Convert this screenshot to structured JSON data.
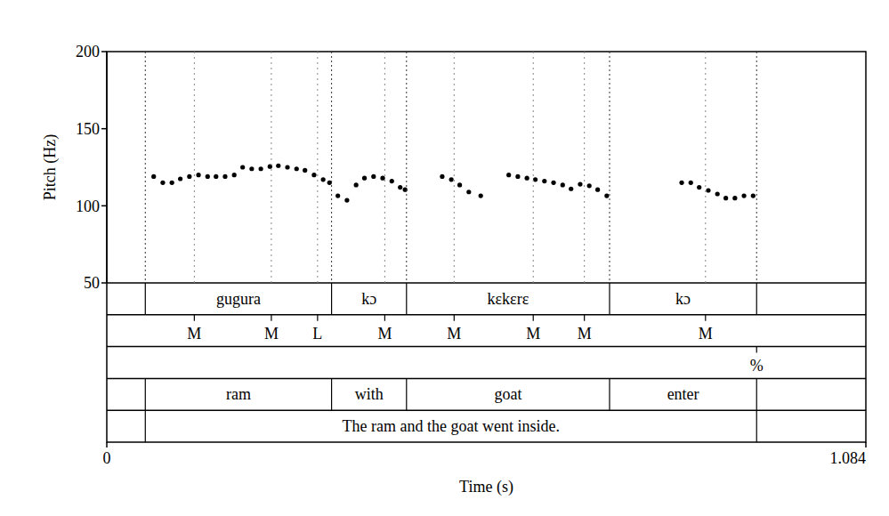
{
  "chart_data": {
    "type": "scatter",
    "x_label": "Time (s)",
    "y_label": "Pitch (Hz)",
    "xlim": [
      0,
      1.084
    ],
    "xticks": [
      0,
      1.084
    ],
    "ylim": [
      50,
      200
    ],
    "yticks": [
      50,
      100,
      150,
      200
    ],
    "color": "#000000",
    "marker": "circle",
    "x": [
      0.067,
      0.08,
      0.093,
      0.105,
      0.118,
      0.131,
      0.144,
      0.156,
      0.169,
      0.182,
      0.194,
      0.207,
      0.22,
      0.233,
      0.245,
      0.258,
      0.271,
      0.283,
      0.296,
      0.309,
      0.318,
      0.33,
      0.343,
      0.356,
      0.368,
      0.381,
      0.394,
      0.407,
      0.419,
      0.426,
      0.479,
      0.492,
      0.504,
      0.517,
      0.534,
      0.574,
      0.587,
      0.6,
      0.612,
      0.625,
      0.638,
      0.651,
      0.663,
      0.676,
      0.689,
      0.701,
      0.714,
      0.821,
      0.834,
      0.846,
      0.859,
      0.872,
      0.884,
      0.897,
      0.91,
      0.923
    ],
    "values": [
      119,
      115,
      115,
      117.5,
      119,
      120,
      119,
      119,
      119,
      120,
      125,
      124,
      124,
      125.5,
      126,
      125,
      124,
      123,
      120,
      117,
      115,
      106.5,
      103.6,
      113.5,
      118,
      119,
      118,
      116,
      112,
      110.5,
      119,
      117,
      113.5,
      109,
      106.5,
      120,
      119,
      118,
      117,
      116,
      115,
      113.5,
      111,
      114,
      113,
      110.5,
      106.5,
      115,
      115,
      112,
      110,
      107.7,
      105,
      105,
      106.5,
      106.5
    ],
    "tiers": [
      {
        "type": "interval",
        "intervals": [
          {
            "start": 0.055,
            "end": 0.321,
            "text": "gugura"
          },
          {
            "start": 0.321,
            "end": 0.428,
            "text": "kɔ"
          },
          {
            "start": 0.428,
            "end": 0.718,
            "text": "kɛkɛrɛ"
          },
          {
            "start": 0.718,
            "end": 0.928,
            "text": "kɔ"
          }
        ]
      },
      {
        "type": "point",
        "points": [
          {
            "time": 0.125,
            "text": "M"
          },
          {
            "time": 0.235,
            "text": "M"
          },
          {
            "time": 0.301,
            "text": "L"
          },
          {
            "time": 0.397,
            "text": "M"
          },
          {
            "time": 0.496,
            "text": "M"
          },
          {
            "time": 0.609,
            "text": "M"
          },
          {
            "time": 0.682,
            "text": "M"
          },
          {
            "time": 0.855,
            "text": "M"
          }
        ]
      },
      {
        "type": "point",
        "points": [
          {
            "time": 0.928,
            "text": "%"
          }
        ]
      },
      {
        "type": "interval",
        "intervals": [
          {
            "start": 0.055,
            "end": 0.321,
            "text": "ram"
          },
          {
            "start": 0.321,
            "end": 0.428,
            "text": "with"
          },
          {
            "start": 0.428,
            "end": 0.718,
            "text": "goat"
          },
          {
            "start": 0.718,
            "end": 0.928,
            "text": "enter"
          }
        ]
      },
      {
        "type": "interval",
        "intervals": [
          {
            "start": 0.055,
            "end": 0.928,
            "text": "The ram and the goat went inside."
          }
        ]
      }
    ]
  }
}
